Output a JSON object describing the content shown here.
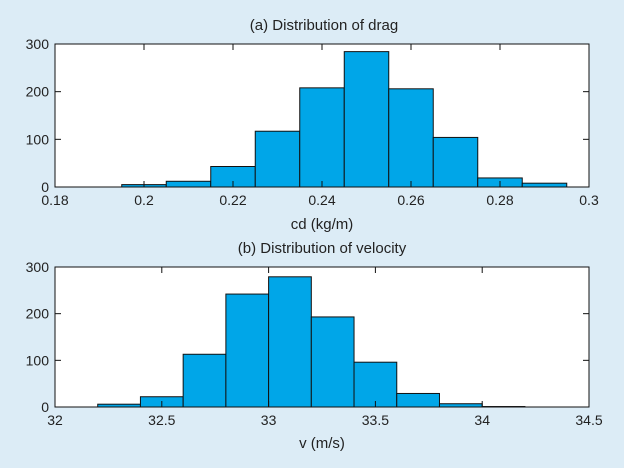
{
  "colors": {
    "background": "#dcecf6",
    "plot_area": "#ffffff",
    "bar_fill": "#00a6e8",
    "bar_stroke": "#111111"
  },
  "chart_data": [
    {
      "type": "bar",
      "title": "(a) Distribution of drag",
      "xlabel": "cd (kg/m)",
      "ylabel": "",
      "xlim": [
        0.18,
        0.3
      ],
      "ylim": [
        0,
        300
      ],
      "xticks": [
        "0.18",
        "0.2",
        "0.22",
        "0.24",
        "0.26",
        "0.28",
        "0.3"
      ],
      "xtick_values": [
        0.18,
        0.2,
        0.22,
        0.24,
        0.26,
        0.28,
        0.3
      ],
      "yticks": [
        "0",
        "100",
        "200",
        "300"
      ],
      "ytick_values": [
        0,
        100,
        200,
        300
      ],
      "bins": [
        {
          "x0": 0.195,
          "x1": 0.205,
          "value": 5
        },
        {
          "x0": 0.205,
          "x1": 0.215,
          "value": 12
        },
        {
          "x0": 0.215,
          "x1": 0.225,
          "value": 43
        },
        {
          "x0": 0.225,
          "x1": 0.235,
          "value": 117
        },
        {
          "x0": 0.235,
          "x1": 0.245,
          "value": 208
        },
        {
          "x0": 0.245,
          "x1": 0.255,
          "value": 284
        },
        {
          "x0": 0.255,
          "x1": 0.265,
          "value": 206
        },
        {
          "x0": 0.265,
          "x1": 0.275,
          "value": 104
        },
        {
          "x0": 0.275,
          "x1": 0.285,
          "value": 19
        },
        {
          "x0": 0.285,
          "x1": 0.295,
          "value": 8
        }
      ],
      "grid": false
    },
    {
      "type": "bar",
      "title": "(b) Distribution of velocity",
      "xlabel": "v (m/s)",
      "ylabel": "",
      "xlim": [
        32,
        34.5
      ],
      "ylim": [
        0,
        300
      ],
      "xticks": [
        "32",
        "32.5",
        "33",
        "33.5",
        "34",
        "34.5"
      ],
      "xtick_values": [
        32,
        32.5,
        33,
        33.5,
        34,
        34.5
      ],
      "yticks": [
        "0",
        "100",
        "200",
        "300"
      ],
      "ytick_values": [
        0,
        100,
        200,
        300
      ],
      "bins": [
        {
          "x0": 32.2,
          "x1": 32.4,
          "value": 6
        },
        {
          "x0": 32.4,
          "x1": 32.6,
          "value": 22
        },
        {
          "x0": 32.6,
          "x1": 32.8,
          "value": 113
        },
        {
          "x0": 32.8,
          "x1": 33.0,
          "value": 242
        },
        {
          "x0": 33.0,
          "x1": 33.2,
          "value": 279
        },
        {
          "x0": 33.2,
          "x1": 33.4,
          "value": 193
        },
        {
          "x0": 33.4,
          "x1": 33.6,
          "value": 96
        },
        {
          "x0": 33.6,
          "x1": 33.8,
          "value": 29
        },
        {
          "x0": 33.8,
          "x1": 34.0,
          "value": 7
        },
        {
          "x0": 34.0,
          "x1": 34.2,
          "value": 1
        }
      ],
      "grid": false
    }
  ]
}
